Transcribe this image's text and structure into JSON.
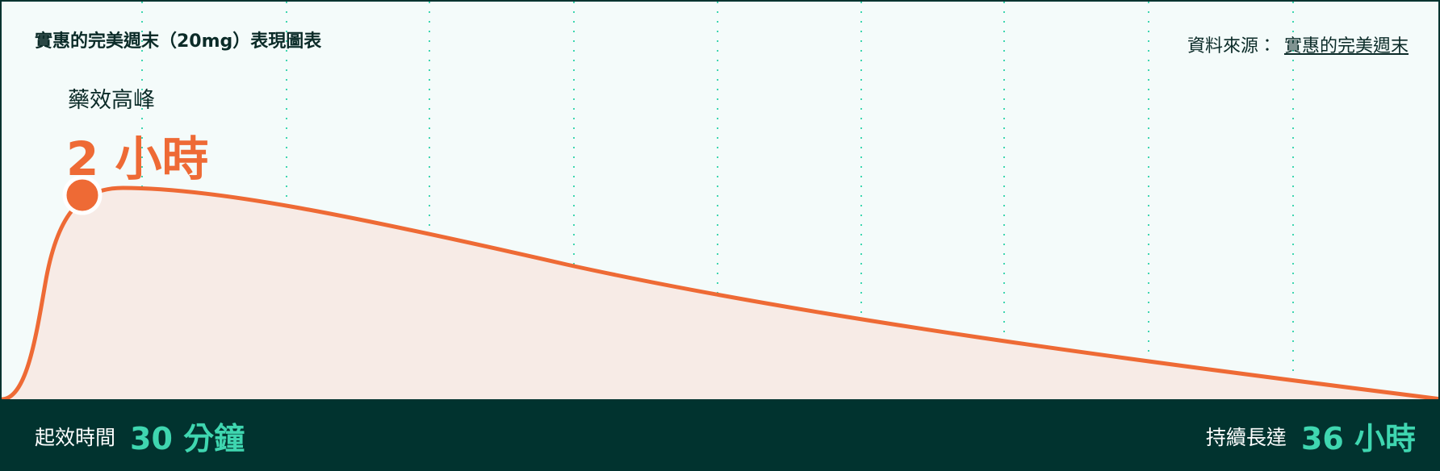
{
  "header": {
    "title": "實惠的完美週末（20mg）表現圖表",
    "source_label": "資料來源：",
    "source_link": "實惠的完美週末"
  },
  "peak": {
    "label": "藥效高峰",
    "value": "2 小時"
  },
  "footer": {
    "onset_label": "起效時間",
    "onset_value": "30 分鐘",
    "duration_label": "持續長達",
    "duration_value": "36 小時"
  }
}
